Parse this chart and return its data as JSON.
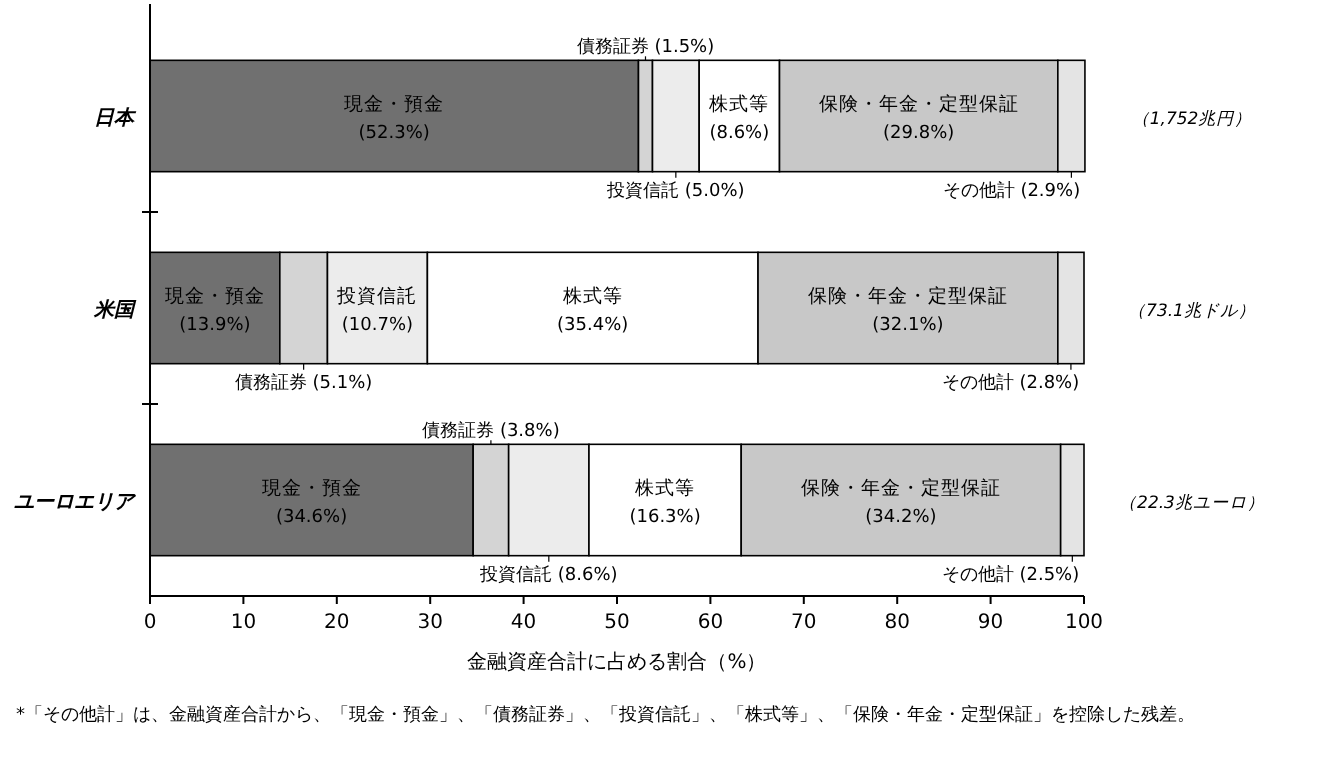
{
  "chart_data": {
    "type": "bar",
    "orientation": "horizontal",
    "stacked": true,
    "categories": [
      "日本",
      "米国",
      "ユーロエリア"
    ],
    "series": [
      {
        "name": "現金・預金",
        "color": "#707070",
        "values": [
          52.3,
          13.9,
          34.6
        ],
        "value_labels": [
          "(52.3%)",
          "(13.9%)",
          "(34.6%)"
        ]
      },
      {
        "name": "債務証券",
        "color": "#d4d4d4",
        "values": [
          1.5,
          5.1,
          3.8
        ],
        "value_labels": [
          "(1.5%)",
          "(5.1%)",
          "(3.8%)"
        ]
      },
      {
        "name": "投資信託",
        "color": "#ececec",
        "values": [
          5.0,
          10.7,
          8.6
        ],
        "value_labels": [
          "(5.0%)",
          "(10.7%)",
          "(8.6%)"
        ]
      },
      {
        "name": "株式等",
        "color": "#ffffff",
        "values": [
          8.6,
          35.4,
          16.3
        ],
        "value_labels": [
          "(8.6%)",
          "(35.4%)",
          "(16.3%)"
        ]
      },
      {
        "name": "保険・年金・定型保証",
        "color": "#c8c8c8",
        "values": [
          29.8,
          32.1,
          34.2
        ],
        "value_labels": [
          "(29.8%)",
          "(32.1%)",
          "(34.2%)"
        ]
      },
      {
        "name": "その他計",
        "color": "#e4e4e4",
        "values": [
          2.9,
          2.8,
          2.5
        ],
        "value_labels": [
          "(2.9%)",
          "(2.8%)",
          "(2.5%)"
        ]
      }
    ],
    "xlim": [
      0,
      100
    ],
    "xticks": [
      0,
      10,
      20,
      30,
      40,
      50,
      60,
      70,
      80,
      90,
      100
    ],
    "xlabel": "金融資産合計に占める割合（%）",
    "annotations": [
      "（1,752兆円）",
      "（73.1兆ドル）",
      "（22.3兆ユーロ）",
      "*「その他計」は、金融資産合計から、「現金・預金」、「債務証券」、「投資信託」、「株式等」、「保険・年金・定型保証」を控除した残差。"
    ]
  }
}
